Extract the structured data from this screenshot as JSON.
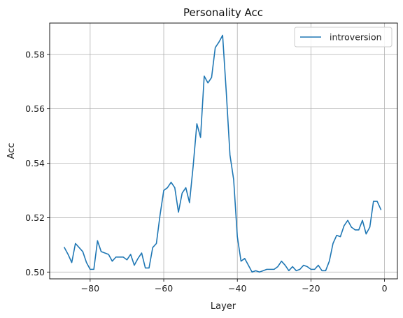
{
  "chart_data": {
    "type": "line",
    "title": "Personality Acc",
    "xlabel": "Layer",
    "ylabel": "Acc",
    "xlim": [
      -91,
      3.5
    ],
    "ylim": [
      0.4975,
      0.5915
    ],
    "xticks": [
      -80,
      -60,
      -40,
      -20,
      0
    ],
    "yticks": [
      0.5,
      0.52,
      0.54,
      0.56,
      0.58
    ],
    "xtick_labels": [
      "−80",
      "−60",
      "−40",
      "−20",
      "0"
    ],
    "ytick_labels": [
      "0.50",
      "0.52",
      "0.54",
      "0.56",
      "0.58"
    ],
    "grid": true,
    "legend_position": "top-right",
    "series": [
      {
        "name": "introversion",
        "color": "#1f77b4",
        "x": [
          -87,
          -86,
          -85,
          -84,
          -83,
          -82,
          -81,
          -80,
          -79,
          -78,
          -77,
          -76,
          -75,
          -74,
          -73,
          -72,
          -71,
          -70,
          -69,
          -68,
          -67,
          -66,
          -65,
          -64,
          -63,
          -62,
          -61,
          -60,
          -59,
          -58,
          -57,
          -56,
          -55,
          -54,
          -53,
          -52,
          -51,
          -50,
          -49,
          -48,
          -47,
          -46,
          -45,
          -44,
          -43,
          -42,
          -41,
          -40,
          -39,
          -38,
          -37,
          -36,
          -35,
          -34,
          -33,
          -32,
          -31,
          -30,
          -29,
          -28,
          -27,
          -26,
          -25,
          -24,
          -23,
          -22,
          -21,
          -20,
          -19,
          -18,
          -17,
          -16,
          -15,
          -14,
          -13,
          -12,
          -11,
          -10,
          -9,
          -8,
          -7,
          -6,
          -5,
          -4,
          -3,
          -2,
          -1
        ],
        "values": [
          0.509,
          0.5065,
          0.5035,
          0.5105,
          0.509,
          0.5075,
          0.5035,
          0.501,
          0.501,
          0.5115,
          0.5075,
          0.507,
          0.5065,
          0.504,
          0.5055,
          0.5055,
          0.5055,
          0.5045,
          0.5065,
          0.5025,
          0.505,
          0.507,
          0.5015,
          0.5015,
          0.509,
          0.5105,
          0.521,
          0.53,
          0.531,
          0.533,
          0.531,
          0.522,
          0.529,
          0.531,
          0.5255,
          0.539,
          0.5545,
          0.5495,
          0.572,
          0.5695,
          0.5715,
          0.5825,
          0.5845,
          0.587,
          0.566,
          0.543,
          0.534,
          0.513,
          0.504,
          0.505,
          0.5025,
          0.5,
          0.5005,
          0.5,
          0.5005,
          0.501,
          0.501,
          0.501,
          0.502,
          0.504,
          0.5025,
          0.5005,
          0.502,
          0.5005,
          0.501,
          0.5025,
          0.502,
          0.501,
          0.501,
          0.5025,
          0.5005,
          0.5005,
          0.504,
          0.5105,
          0.5135,
          0.513,
          0.517,
          0.519,
          0.5165,
          0.5155,
          0.5155,
          0.519,
          0.514,
          0.5165,
          0.526,
          0.526,
          0.523
        ]
      }
    ]
  }
}
